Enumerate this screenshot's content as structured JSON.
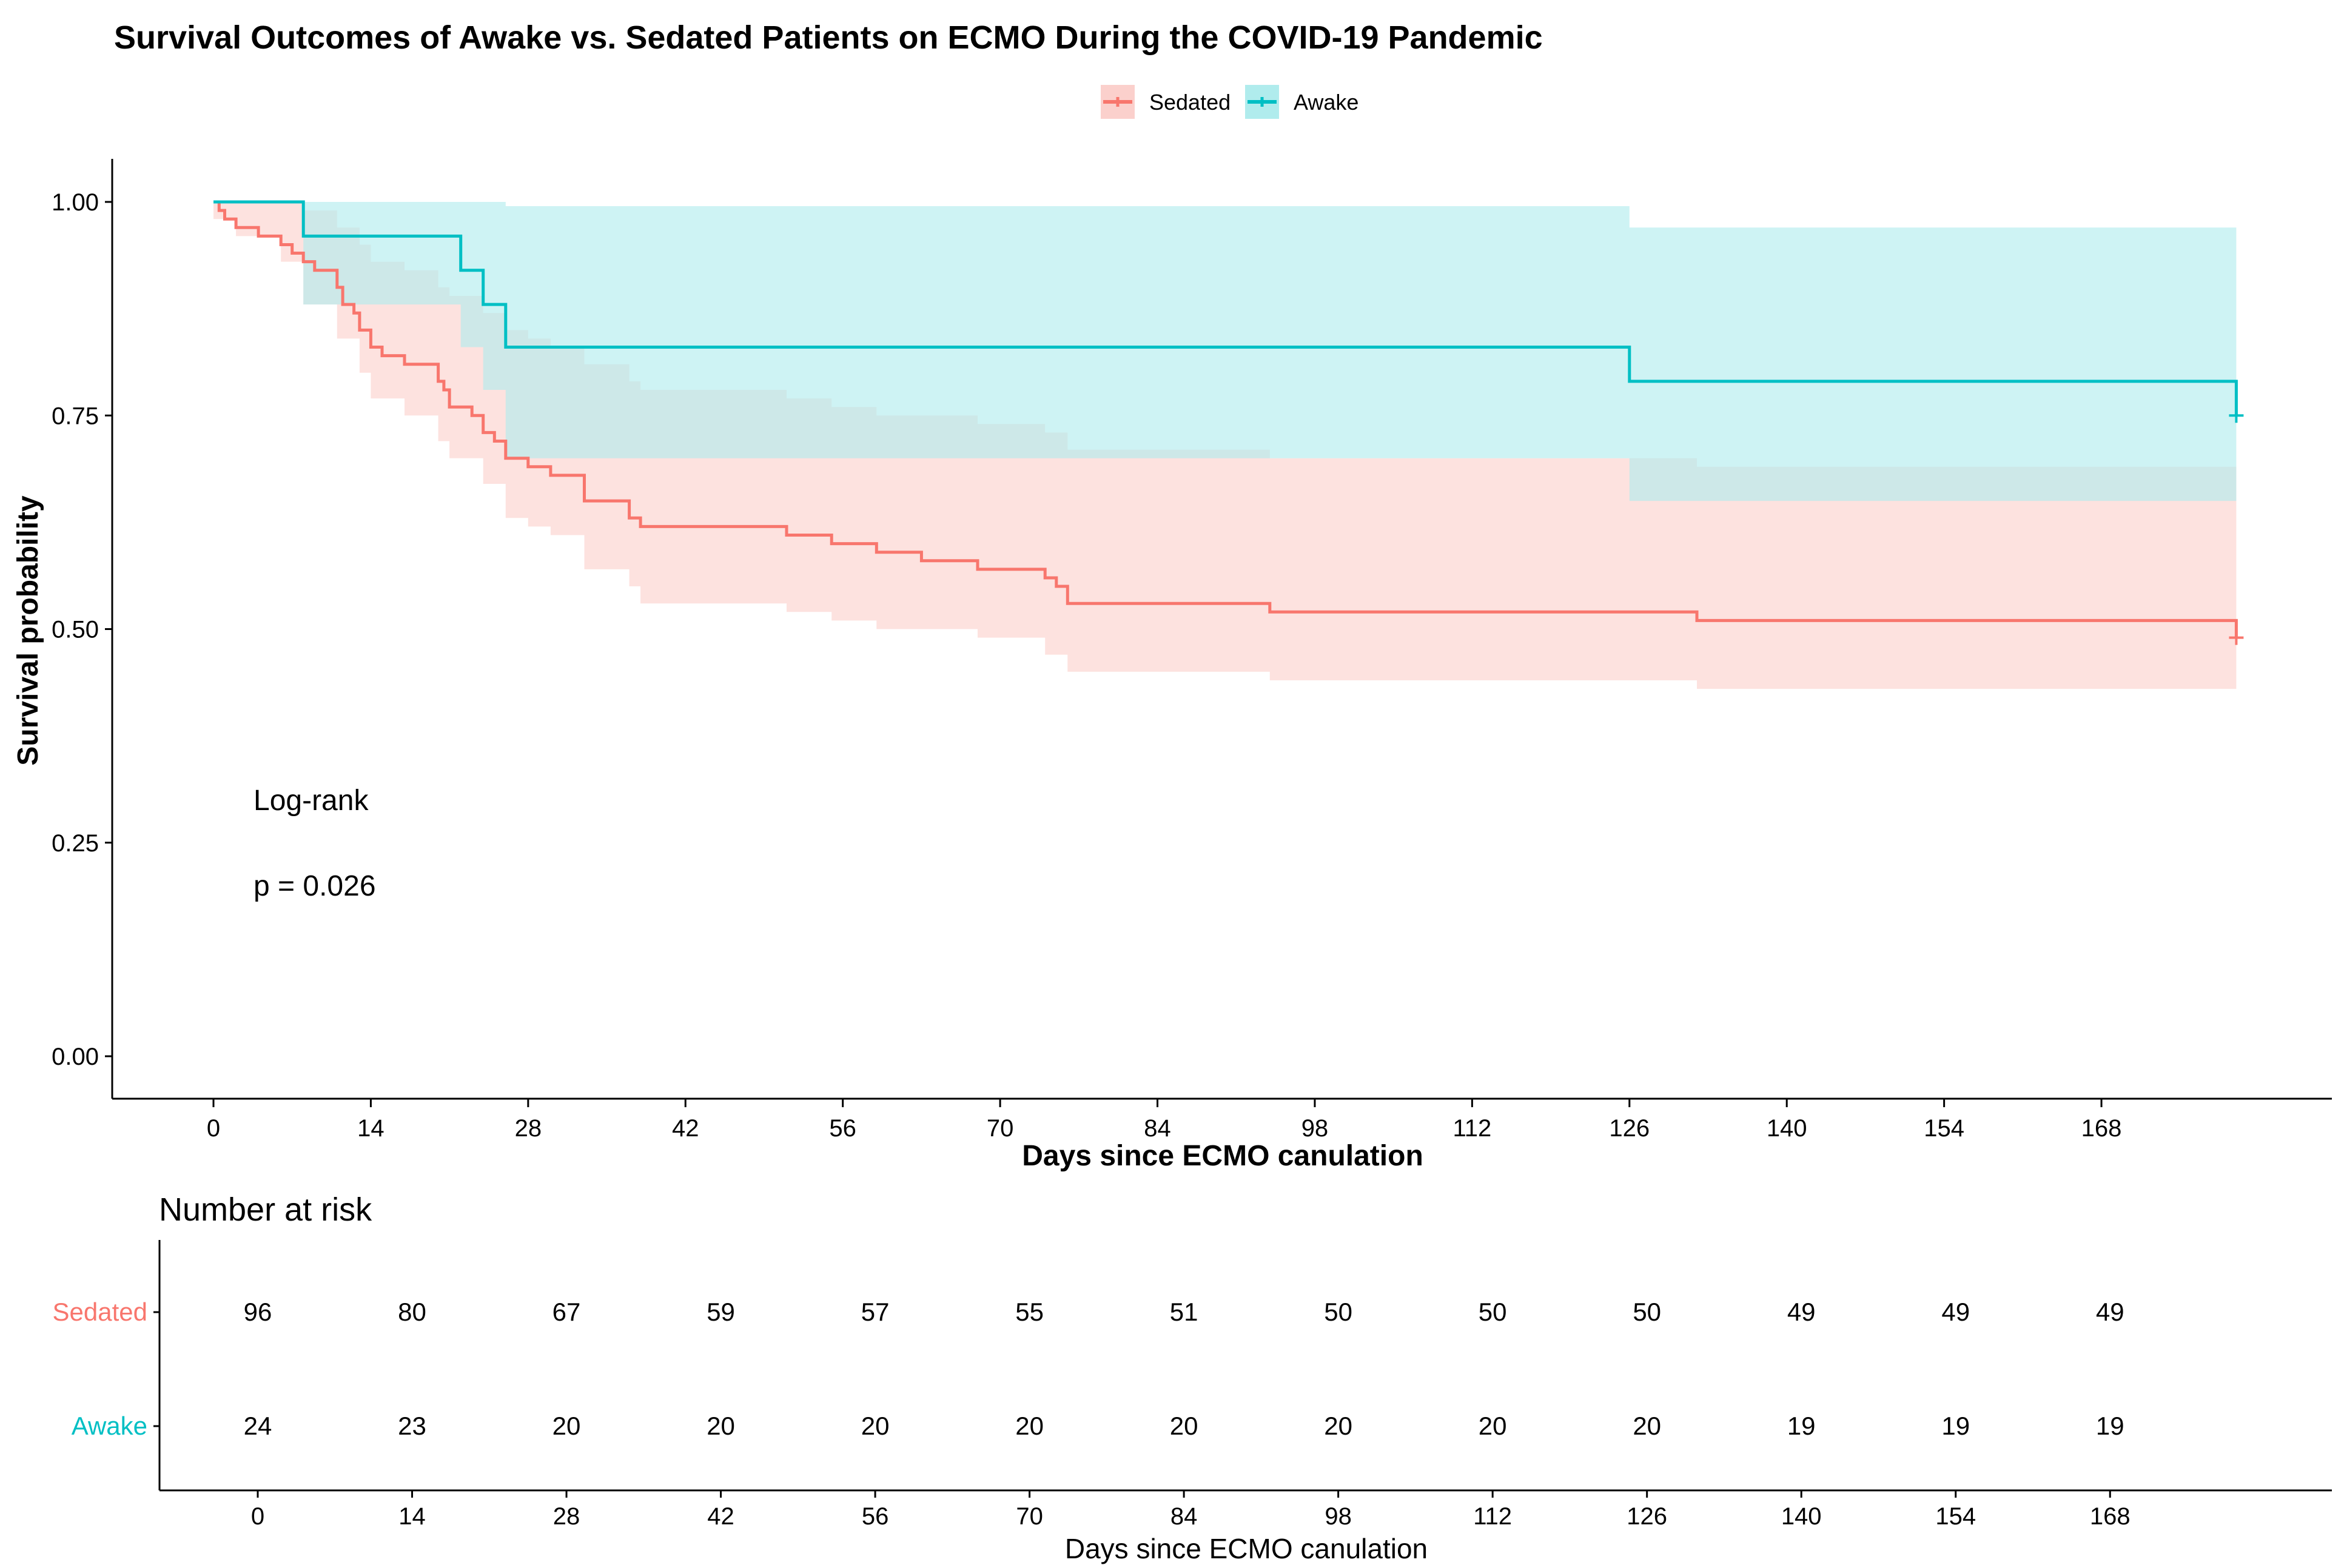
{
  "chart_data": {
    "type": "line",
    "title": "Survival Outcomes of Awake vs. Sedated Patients on ECMO During the COVID-19 Pandemic",
    "xlabel": "Days since ECMO canulation",
    "ylabel": "Survival probability",
    "xlim": [
      -5,
      185
    ],
    "ylim": [
      -0.05,
      1.05
    ],
    "x_ticks": [
      0,
      14,
      28,
      42,
      56,
      70,
      84,
      98,
      112,
      126,
      140,
      154,
      168
    ],
    "y_ticks": [
      0.0,
      0.25,
      0.5,
      0.75,
      1.0
    ],
    "y_tick_labels": [
      "0.00",
      "0.25",
      "0.50",
      "0.75",
      "1.00"
    ],
    "grid": false,
    "legend_position": "top",
    "annotation": {
      "line1": "Log-rank",
      "line2": "p = 0.026"
    },
    "series": [
      {
        "name": "Sedated",
        "color": "#F8766D",
        "fill": "#FBD0CC",
        "steps": [
          [
            0,
            1.0
          ],
          [
            0.5,
            0.99
          ],
          [
            1,
            0.98
          ],
          [
            2,
            0.97
          ],
          [
            4,
            0.96
          ],
          [
            6,
            0.95
          ],
          [
            7,
            0.94
          ],
          [
            8,
            0.93
          ],
          [
            9,
            0.92
          ],
          [
            11,
            0.9
          ],
          [
            11.5,
            0.88
          ],
          [
            12.5,
            0.87
          ],
          [
            13,
            0.85
          ],
          [
            14,
            0.83
          ],
          [
            15,
            0.82
          ],
          [
            17,
            0.81
          ],
          [
            20,
            0.79
          ],
          [
            20.5,
            0.78
          ],
          [
            21,
            0.76
          ],
          [
            23,
            0.75
          ],
          [
            24,
            0.73
          ],
          [
            25,
            0.72
          ],
          [
            26,
            0.7
          ],
          [
            28,
            0.69
          ],
          [
            30,
            0.68
          ],
          [
            33,
            0.65
          ],
          [
            37,
            0.63
          ],
          [
            38,
            0.62
          ],
          [
            51,
            0.61
          ],
          [
            55,
            0.6
          ],
          [
            59,
            0.59
          ],
          [
            63,
            0.58
          ],
          [
            68,
            0.57
          ],
          [
            74,
            0.56
          ],
          [
            75,
            0.55
          ],
          [
            76,
            0.53
          ],
          [
            94,
            0.52
          ],
          [
            132,
            0.51
          ],
          [
            180,
            0.49
          ]
        ],
        "ci_band": [
          [
            0,
            0.98,
            1.0
          ],
          [
            2,
            0.96,
            1.0
          ],
          [
            6,
            0.93,
            1.0
          ],
          [
            8,
            0.88,
            0.99
          ],
          [
            11,
            0.84,
            0.97
          ],
          [
            13,
            0.8,
            0.95
          ],
          [
            14,
            0.77,
            0.93
          ],
          [
            17,
            0.75,
            0.92
          ],
          [
            20,
            0.72,
            0.9
          ],
          [
            21,
            0.7,
            0.89
          ],
          [
            24,
            0.67,
            0.87
          ],
          [
            26,
            0.63,
            0.85
          ],
          [
            28,
            0.62,
            0.84
          ],
          [
            30,
            0.61,
            0.83
          ],
          [
            33,
            0.57,
            0.81
          ],
          [
            37,
            0.55,
            0.79
          ],
          [
            38,
            0.53,
            0.78
          ],
          [
            51,
            0.52,
            0.77
          ],
          [
            55,
            0.51,
            0.76
          ],
          [
            59,
            0.5,
            0.75
          ],
          [
            68,
            0.49,
            0.74
          ],
          [
            74,
            0.47,
            0.73
          ],
          [
            76,
            0.45,
            0.71
          ],
          [
            94,
            0.44,
            0.7
          ],
          [
            132,
            0.43,
            0.69
          ],
          [
            180,
            0.43,
            0.69
          ]
        ]
      },
      {
        "name": "Awake",
        "color": "#00BFC4",
        "fill": "#B0ECED",
        "steps": [
          [
            0,
            1.0
          ],
          [
            8,
            0.96
          ],
          [
            22,
            0.92
          ],
          [
            24,
            0.88
          ],
          [
            26,
            0.83
          ],
          [
            126,
            0.79
          ],
          [
            180,
            0.75
          ]
        ],
        "ci_band": [
          [
            0,
            1.0,
            1.0
          ],
          [
            8,
            0.88,
            1.0
          ],
          [
            22,
            0.83,
            1.0
          ],
          [
            24,
            0.78,
            1.0
          ],
          [
            26,
            0.7,
            0.995
          ],
          [
            126,
            0.65,
            0.97
          ],
          [
            180,
            0.65,
            0.97
          ]
        ]
      }
    ]
  },
  "risk_table": {
    "title": "Number at risk",
    "xlabel": "Days since ECMO canulation",
    "x_ticks": [
      0,
      14,
      28,
      42,
      56,
      70,
      84,
      98,
      112,
      126,
      140,
      154,
      168
    ],
    "rows": [
      {
        "name": "Sedated",
        "color": "#F8766D",
        "values": [
          "96",
          "80",
          "67",
          "59",
          "57",
          "55",
          "51",
          "50",
          "50",
          "50",
          "49",
          "49",
          "49"
        ]
      },
      {
        "name": "Awake",
        "color": "#00BFC4",
        "values": [
          "24",
          "23",
          "20",
          "20",
          "20",
          "20",
          "20",
          "20",
          "20",
          "20",
          "19",
          "19",
          "19"
        ]
      }
    ]
  }
}
